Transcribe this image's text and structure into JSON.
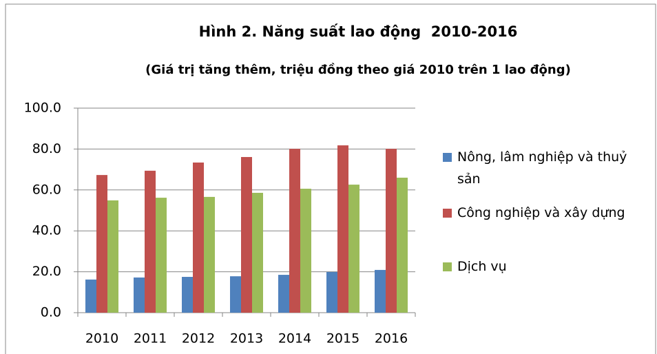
{
  "chart_data": {
    "type": "bar",
    "title": "Hình 2. Năng suất lao động  2010-2016",
    "subtitle": "(Giá trị tăng thêm, triệu đồng theo giá 2010 trên 1 lao động)",
    "categories": [
      "2010",
      "2011",
      "2012",
      "2013",
      "2014",
      "2015",
      "2016"
    ],
    "series": [
      {
        "name": "Nông, lâm nghiệp và thuỷ sản",
        "color": "#4f81bd",
        "values": [
          16.2,
          17.2,
          17.5,
          17.8,
          18.5,
          19.9,
          20.9
        ]
      },
      {
        "name": "Công nghiệp và xây dựng",
        "color": "#c0504d",
        "values": [
          67.3,
          69.4,
          73.4,
          76.1,
          80.1,
          81.8,
          80.1
        ]
      },
      {
        "name": "Dịch vụ",
        "color": "#9bbb59",
        "values": [
          54.9,
          56.2,
          56.6,
          58.6,
          60.6,
          62.6,
          66.0
        ]
      }
    ],
    "ylim": [
      0,
      100
    ],
    "yticks": [
      {
        "value": 0,
        "label": "0.0"
      },
      {
        "value": 20,
        "label": "20.0"
      },
      {
        "value": 40,
        "label": "40.0"
      },
      {
        "value": 60,
        "label": "60.0"
      },
      {
        "value": 80,
        "label": "80.0"
      },
      {
        "value": 100,
        "label": "100.0"
      }
    ],
    "grid": true,
    "legend": "right"
  }
}
